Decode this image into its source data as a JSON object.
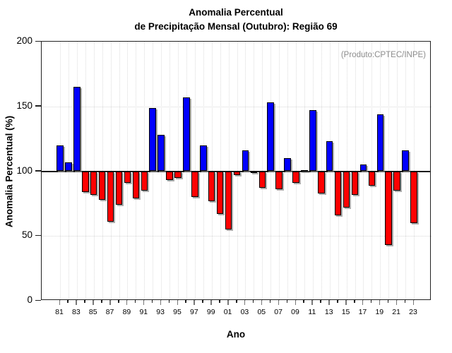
{
  "title": {
    "line1": "Anomalia Percentual",
    "line2": "de Precipitação Mensal (Outubro): Região 69"
  },
  "annotation": "(Produto:CPTEC/INPE)",
  "axes": {
    "y_label": "Anomalia Percentual (%)",
    "x_label": "Ano",
    "y_ticks": [
      0,
      50,
      100,
      150,
      200
    ],
    "y_grid_values": [
      50,
      150
    ],
    "labeled_x_step": 2
  },
  "colors": {
    "above_baseline": "#0000ff",
    "below_baseline": "#ff0000",
    "baseline_line": "#1a1a1a",
    "annotation_text": "#8c8c8c",
    "grid": "#dcdcdc"
  },
  "chart_data": {
    "type": "bar",
    "title": "Anomalia Percentual de Precipitação Mensal (Outubro): Região 69",
    "xlabel": "Ano",
    "ylabel": "Anomalia Percentual (%)",
    "ylim": [
      0,
      200
    ],
    "baseline": 100,
    "legend": "none",
    "grid": "vertical dotted per year; horizontal dotted at 50 and 150; solid line at 100",
    "categories": [
      "81",
      "82",
      "83",
      "84",
      "85",
      "86",
      "87",
      "88",
      "89",
      "90",
      "91",
      "92",
      "93",
      "94",
      "95",
      "96",
      "97",
      "98",
      "99",
      "00",
      "01",
      "02",
      "03",
      "04",
      "05",
      "06",
      "07",
      "08",
      "09",
      "10",
      "11",
      "12",
      "13",
      "14",
      "15",
      "16",
      "17",
      "18",
      "19",
      "20",
      "21",
      "22",
      "23"
    ],
    "values": [
      120,
      107,
      165,
      84,
      82,
      78,
      61,
      74,
      91,
      79,
      85,
      149,
      128,
      93,
      95,
      157,
      80,
      120,
      77,
      67,
      55,
      97,
      116,
      99.5,
      87,
      153,
      86,
      110,
      91,
      101,
      147,
      83,
      123,
      66,
      72,
      82,
      105,
      89,
      144,
      43,
      85,
      116,
      60
    ]
  }
}
